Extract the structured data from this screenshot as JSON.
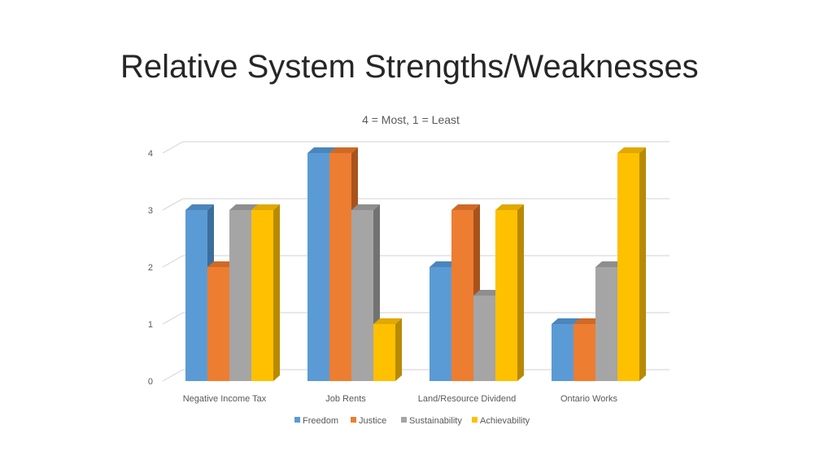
{
  "slide": {
    "title": "Relative System Strengths/Weaknesses"
  },
  "chart_data": {
    "type": "bar",
    "subtitle": "4 = Most, 1 = Least",
    "categories": [
      "Negative Income Tax",
      "Job Rents",
      "Land/Resource Dividend",
      "Ontario Works"
    ],
    "series": [
      {
        "name": "Freedom",
        "values": [
          3,
          4,
          2,
          1
        ],
        "color": "#5B9BD5",
        "side_color": "#3C6E9C",
        "top_color": "#4A86BC"
      },
      {
        "name": "Justice",
        "values": [
          2,
          4,
          3,
          1
        ],
        "color": "#ED7D31",
        "side_color": "#A9531C",
        "top_color": "#CF6A26"
      },
      {
        "name": "Sustainability",
        "values": [
          3,
          3,
          1.5,
          2
        ],
        "color": "#A5A5A5",
        "side_color": "#727272",
        "top_color": "#8E8E8E"
      },
      {
        "name": "Achievability",
        "values": [
          3,
          1,
          3,
          4
        ],
        "color": "#FFC000",
        "side_color": "#B88A00",
        "top_color": "#E0A800"
      }
    ],
    "ylim": [
      0,
      4
    ],
    "yticks": [
      0,
      1,
      2,
      3,
      4
    ],
    "style": "3d-clustered-column",
    "grid": true,
    "legend": "bottom"
  }
}
